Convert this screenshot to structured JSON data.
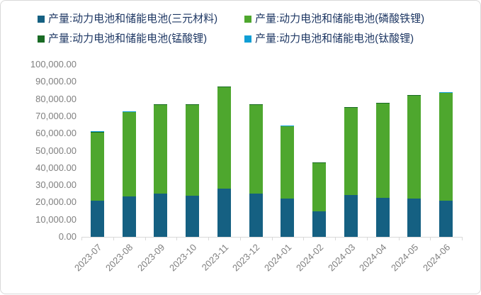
{
  "chart_data": {
    "type": "bar",
    "stacked": true,
    "title": "",
    "xlabel": "",
    "ylabel": "",
    "grid": false,
    "legend_position": "top",
    "ylim": [
      0,
      100000
    ],
    "ytick_step": 10000,
    "ytick_labels": [
      "0.00",
      "10,000.00",
      "20,000.00",
      "30,000.00",
      "40,000.00",
      "50,000.00",
      "60,000.00",
      "70,000.00",
      "80,000.00",
      "90,000.00",
      "100,000.00"
    ],
    "categories": [
      "2023-07",
      "2023-08",
      "2023-09",
      "2023-10",
      "2023-11",
      "2023-12",
      "2024-01",
      "2024-02",
      "2024-03",
      "2024-04",
      "2024-05",
      "2024-06"
    ],
    "series": [
      {
        "name": "产量:动力电池和储能电池(三元材料)",
        "color": "#156082",
        "values": [
          20900,
          23500,
          25100,
          23900,
          27900,
          25000,
          22100,
          14900,
          24300,
          22500,
          22200,
          20900
        ]
      },
      {
        "name": "产量:动力电池和储能电池(磷酸铁锂)",
        "color": "#4EA72E",
        "values": [
          39700,
          48900,
          51500,
          52700,
          59000,
          51600,
          42100,
          28000,
          50700,
          55000,
          59800,
          62500
        ]
      },
      {
        "name": "产量:动力电池和储能电池(锰酸锂)",
        "color": "#196B24",
        "values": [
          200,
          200,
          200,
          200,
          200,
          200,
          200,
          200,
          200,
          200,
          200,
          200
        ]
      },
      {
        "name": "产量:动力电池和储能电池(钛酸锂)",
        "color": "#0F9ED5",
        "values": [
          500,
          200,
          200,
          200,
          200,
          200,
          200,
          200,
          200,
          200,
          200,
          200
        ]
      }
    ]
  },
  "style": {
    "legend_text_color": "#1F3864",
    "axis_label_color": "#7F7F7F",
    "axis_line_color": "#D9D9D9",
    "border_color": "#D9D9D9",
    "background": "#FFFFFF"
  }
}
